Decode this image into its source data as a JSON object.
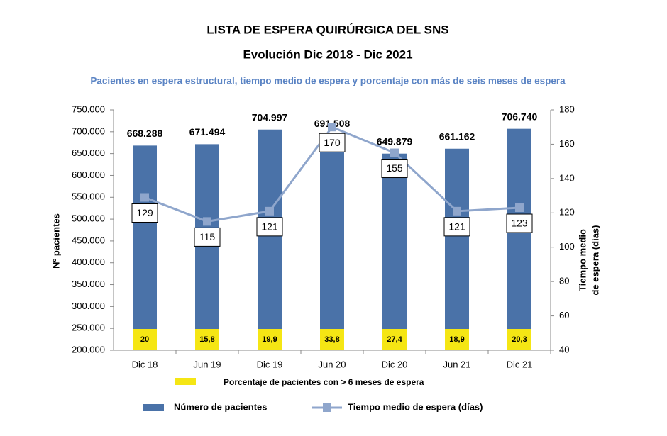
{
  "chart_data": {
    "type": "bar",
    "title": "LISTA DE ESPERA QUIRÚRGICA DEL SNS",
    "subtitle": "Evolución Dic 2018 - Dic 2021",
    "description": "Pacientes en espera estructural, tiempo medio de espera  y porcentaje con más de seis meses de espera",
    "y_label": "Nº pacientes",
    "y2_label": [
      "Tiempo medio",
      "de espera (días)"
    ],
    "categories": [
      "Dic 18",
      "Jun 19",
      "Dic 19",
      "Jun 20",
      "Dic 20",
      "Jun 21",
      "Dic 21"
    ],
    "series": [
      {
        "name": "Número de pacientes",
        "type": "bar",
        "color": "#4a72a8",
        "values": [
          668288,
          671494,
          704997,
          691508,
          649879,
          661162,
          706740
        ],
        "value_labels": [
          "668.288",
          "671.494",
          "704.997",
          "691.508",
          "649.879",
          "661.162",
          "706.740"
        ]
      },
      {
        "name": "Tiempo medio de espera (días)",
        "type": "line",
        "axis": "y2",
        "color": "#8fa6cc",
        "values": [
          129,
          115,
          121,
          170,
          155,
          121,
          123
        ]
      },
      {
        "name": "Porcentaje de pacientes con > 6 meses  de espera",
        "type": "box",
        "color": "#f5e614",
        "values": [
          20,
          15.8,
          19.9,
          33.8,
          27.4,
          18.9,
          20.3
        ],
        "value_labels": [
          "20",
          "15,8",
          "19,9",
          "33,8",
          "27,4",
          "18,9",
          "20,3"
        ]
      }
    ],
    "ylim": [
      200000,
      750000
    ],
    "yticks": [
      {
        "value": 200000,
        "label": "200.000"
      },
      {
        "value": 250000,
        "label": "250.000"
      },
      {
        "value": 300000,
        "label": "300.000"
      },
      {
        "value": 350000,
        "label": "350.000"
      },
      {
        "value": 400000,
        "label": "400.000"
      },
      {
        "value": 450000,
        "label": "450.000"
      },
      {
        "value": 500000,
        "label": "500.000"
      },
      {
        "value": 550000,
        "label": "550.000"
      },
      {
        "value": 600000,
        "label": "600.000"
      },
      {
        "value": 650000,
        "label": "650.000"
      },
      {
        "value": 700000,
        "label": "700.000"
      },
      {
        "value": 750000,
        "label": "750.000"
      }
    ],
    "y2lim": [
      40,
      180
    ],
    "y2ticks": [
      40,
      60,
      80,
      100,
      120,
      140,
      160,
      180
    ],
    "grid": false
  }
}
